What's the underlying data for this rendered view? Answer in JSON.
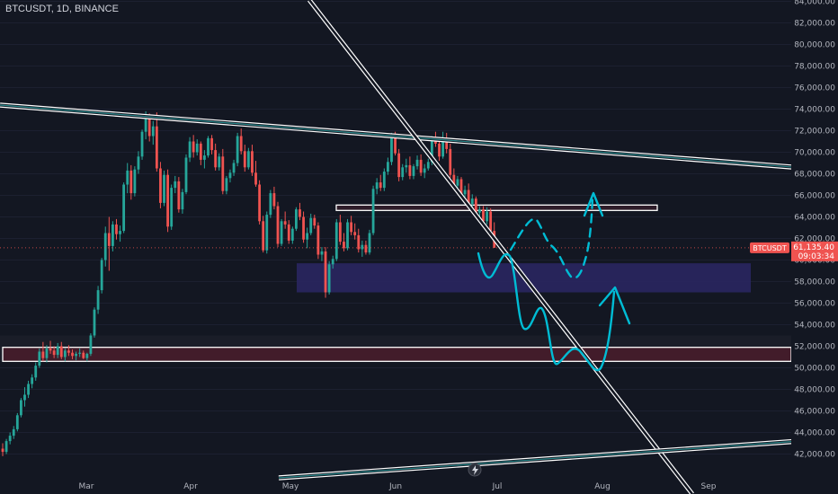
{
  "header": {
    "title": "BTCUSDT, 1D, BINANCE"
  },
  "price_tag": {
    "symbol": "BTCUSDT",
    "price": "61,135.40",
    "countdown": "09:03:34"
  },
  "colors": {
    "background": "#131722",
    "up": "#26a69a",
    "down": "#ef5350",
    "trendline": "#ffffff",
    "channel": "#2fa6a6",
    "drawing": "#00bcd4",
    "zone_purple": "#2a2660",
    "zone_red": "#4a1c2a",
    "axis_text": "#b2b5be"
  },
  "chart_data": {
    "type": "candlestick",
    "symbol": "BTCUSDT",
    "interval": "1D",
    "exchange": "BINANCE",
    "ylim": [
      40000,
      84000
    ],
    "y_ticks": [
      "84,000.00",
      "82,000.00",
      "80,000.00",
      "78,000.00",
      "76,000.00",
      "74,000.00",
      "72,000.00",
      "70,000.00",
      "68,000.00",
      "66,000.00",
      "64,000.00",
      "62,000.00",
      "60,000.00",
      "58,000.00",
      "56,000.00",
      "54,000.00",
      "52,000.00",
      "50,000.00",
      "48,000.00",
      "46,000.00",
      "44,000.00",
      "42,000.00"
    ],
    "y_tick_values": [
      84000,
      82000,
      80000,
      78000,
      76000,
      74000,
      72000,
      70000,
      68000,
      66000,
      64000,
      62000,
      60000,
      58000,
      56000,
      54000,
      52000,
      50000,
      48000,
      46000,
      44000,
      42000
    ],
    "x_labels": [
      "Mar",
      "Apr",
      "May",
      "Jun",
      "Jul",
      "Aug",
      "Sep"
    ],
    "candles": [
      [
        42500,
        43000,
        41800,
        42200
      ],
      [
        42200,
        43400,
        42000,
        43200
      ],
      [
        43200,
        44000,
        42900,
        43700
      ],
      [
        43700,
        44600,
        43400,
        44300
      ],
      [
        44300,
        45800,
        44100,
        45600
      ],
      [
        45600,
        47200,
        45400,
        47000
      ],
      [
        47000,
        48200,
        46400,
        47500
      ],
      [
        47500,
        48800,
        47200,
        48500
      ],
      [
        48500,
        49400,
        48100,
        49100
      ],
      [
        49100,
        50500,
        48800,
        50200
      ],
      [
        50200,
        51800,
        50000,
        51500
      ],
      [
        51500,
        52400,
        50600,
        50900
      ],
      [
        50900,
        52100,
        50500,
        51800
      ],
      [
        51800,
        52500,
        51300,
        51600
      ],
      [
        51600,
        52000,
        50900,
        51200
      ],
      [
        51200,
        52300,
        50900,
        52000
      ],
      [
        52000,
        52400,
        50800,
        51000
      ],
      [
        51000,
        51800,
        50600,
        51600
      ],
      [
        51600,
        52100,
        51100,
        51400
      ],
      [
        51400,
        51700,
        50800,
        51100
      ],
      [
        51100,
        51500,
        50700,
        51300
      ],
      [
        51300,
        51800,
        51000,
        51400
      ],
      [
        51400,
        51600,
        50800,
        50900
      ],
      [
        50900,
        51400,
        50600,
        51300
      ],
      [
        51300,
        53200,
        51100,
        53000
      ],
      [
        53000,
        55600,
        52800,
        55400
      ],
      [
        55400,
        57600,
        55000,
        57200
      ],
      [
        57200,
        60200,
        56900,
        60000
      ],
      [
        60000,
        63100,
        59400,
        62500
      ],
      [
        62500,
        64000,
        59000,
        61300
      ],
      [
        61300,
        63600,
        60800,
        63300
      ],
      [
        63300,
        63800,
        61900,
        62400
      ],
      [
        62400,
        63200,
        61700,
        62700
      ],
      [
        62700,
        67200,
        62500,
        67000
      ],
      [
        67000,
        69000,
        66200,
        68300
      ],
      [
        68300,
        68800,
        65600,
        66200
      ],
      [
        66200,
        68700,
        65900,
        68400
      ],
      [
        68400,
        70100,
        68000,
        69600
      ],
      [
        69600,
        72100,
        69300,
        71900
      ],
      [
        71900,
        73800,
        71200,
        73100
      ],
      [
        73100,
        73600,
        71000,
        71500
      ],
      [
        71500,
        72900,
        70700,
        72400
      ],
      [
        72400,
        73700,
        68200,
        68500
      ],
      [
        68500,
        69100,
        64800,
        65300
      ],
      [
        65300,
        68300,
        65000,
        67900
      ],
      [
        67900,
        68400,
        62600,
        63100
      ],
      [
        63100,
        67000,
        62800,
        66700
      ],
      [
        66700,
        67800,
        66200,
        67300
      ],
      [
        67300,
        67700,
        64400,
        64700
      ],
      [
        64700,
        66600,
        64300,
        66300
      ],
      [
        66300,
        69800,
        66100,
        69500
      ],
      [
        69500,
        71400,
        69100,
        71000
      ],
      [
        71000,
        71600,
        69500,
        70000
      ],
      [
        70000,
        71200,
        69700,
        70800
      ],
      [
        70800,
        71000,
        68800,
        69300
      ],
      [
        69300,
        70200,
        68500,
        69700
      ],
      [
        69700,
        71500,
        69500,
        71300
      ],
      [
        71300,
        71600,
        69800,
        70200
      ],
      [
        70200,
        70800,
        68300,
        68600
      ],
      [
        68600,
        69900,
        68300,
        69600
      ],
      [
        69600,
        70300,
        66100,
        66400
      ],
      [
        66400,
        67800,
        66100,
        67600
      ],
      [
        67600,
        68400,
        67200,
        68100
      ],
      [
        68100,
        69300,
        67800,
        69000
      ],
      [
        69000,
        71800,
        68700,
        71500
      ],
      [
        71500,
        72200,
        69800,
        70100
      ],
      [
        70100,
        70700,
        68200,
        68600
      ],
      [
        68600,
        70400,
        68400,
        70100
      ],
      [
        70100,
        70700,
        67800,
        68100
      ],
      [
        68100,
        69200,
        66800,
        67000
      ],
      [
        67000,
        67400,
        63300,
        63600
      ],
      [
        63600,
        64100,
        60700,
        60900
      ],
      [
        60900,
        64500,
        60600,
        64200
      ],
      [
        64200,
        66500,
        63900,
        66200
      ],
      [
        66200,
        66800,
        64700,
        65000
      ],
      [
        65000,
        65400,
        61200,
        61500
      ],
      [
        61500,
        63800,
        61300,
        63600
      ],
      [
        63600,
        64500,
        62900,
        63300
      ],
      [
        63300,
        63700,
        61500,
        61800
      ],
      [
        61800,
        63100,
        61500,
        62900
      ],
      [
        62900,
        64900,
        62700,
        64700
      ],
      [
        64700,
        65300,
        63700,
        64000
      ],
      [
        64000,
        64500,
        61600,
        61900
      ],
      [
        61900,
        63000,
        61100,
        62500
      ],
      [
        62500,
        64300,
        62300,
        63900
      ],
      [
        63900,
        64200,
        62900,
        63200
      ],
      [
        63200,
        63500,
        60100,
        60500
      ],
      [
        60500,
        61200,
        59900,
        60800
      ],
      [
        60800,
        61200,
        56500,
        57000
      ],
      [
        57000,
        59900,
        56800,
        59600
      ],
      [
        59600,
        60400,
        59200,
        60100
      ],
      [
        60100,
        63800,
        59900,
        63500
      ],
      [
        63500,
        64200,
        61400,
        61700
      ],
      [
        61700,
        62500,
        60800,
        61100
      ],
      [
        61100,
        63800,
        60900,
        63500
      ],
      [
        63500,
        64100,
        62300,
        62600
      ],
      [
        62600,
        63400,
        61900,
        62300
      ],
      [
        62300,
        62900,
        60700,
        61000
      ],
      [
        61000,
        61800,
        60300,
        61400
      ],
      [
        61400,
        61800,
        60500,
        60700
      ],
      [
        60700,
        62800,
        60500,
        62500
      ],
      [
        62500,
        66900,
        62300,
        66600
      ],
      [
        66600,
        67600,
        66100,
        67200
      ],
      [
        67200,
        67900,
        66400,
        66700
      ],
      [
        66700,
        68500,
        66400,
        68200
      ],
      [
        68200,
        69500,
        67900,
        69100
      ],
      [
        69100,
        71800,
        68800,
        71500
      ],
      [
        71500,
        71900,
        69700,
        69900
      ],
      [
        69900,
        70300,
        67300,
        67700
      ],
      [
        67700,
        68900,
        67400,
        68600
      ],
      [
        68600,
        69400,
        68100,
        68800
      ],
      [
        68800,
        69600,
        67500,
        67800
      ],
      [
        67800,
        68900,
        67500,
        68700
      ],
      [
        68700,
        69700,
        68400,
        69300
      ],
      [
        69300,
        69800,
        67800,
        68100
      ],
      [
        68100,
        68900,
        67600,
        68500
      ],
      [
        68500,
        69400,
        68300,
        69100
      ],
      [
        69100,
        71500,
        68800,
        71200
      ],
      [
        71200,
        71900,
        70500,
        70800
      ],
      [
        70800,
        71200,
        69200,
        69600
      ],
      [
        69600,
        71900,
        69400,
        71200
      ],
      [
        71200,
        71800,
        69900,
        70300
      ],
      [
        70300,
        70800,
        67600,
        67900
      ],
      [
        67900,
        68500,
        66600,
        66900
      ],
      [
        66900,
        67800,
        66600,
        67500
      ],
      [
        67500,
        67700,
        65800,
        66100
      ],
      [
        66100,
        66900,
        65700,
        66500
      ],
      [
        66500,
        67100,
        64900,
        65200
      ],
      [
        65200,
        66100,
        64900,
        65700
      ],
      [
        65700,
        65900,
        64100,
        64400
      ],
      [
        64400,
        65000,
        63700,
        64700
      ],
      [
        64700,
        65000,
        63400,
        63600
      ],
      [
        63600,
        64900,
        63300,
        64500
      ],
      [
        64500,
        64800,
        62400,
        62700
      ],
      [
        62700,
        63500,
        61500,
        61135
      ]
    ],
    "horizontal_zones": [
      {
        "name": "resistance-box",
        "from": 64600,
        "to": 65100
      },
      {
        "name": "demand-zone",
        "from": 57000,
        "to": 59700
      },
      {
        "name": "support-zone",
        "from": 50600,
        "to": 51900
      }
    ],
    "current_price": 61135.4
  }
}
